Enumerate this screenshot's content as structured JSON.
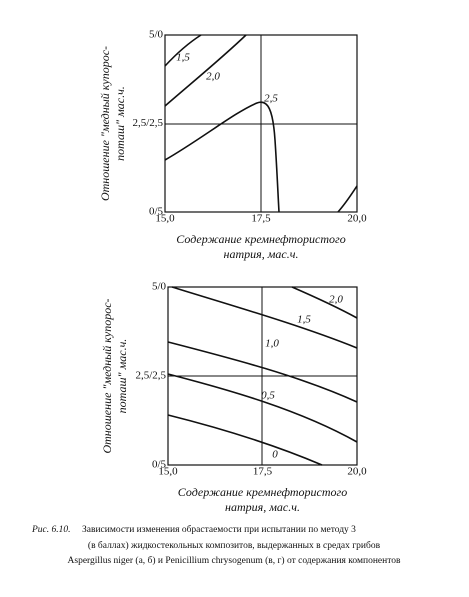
{
  "figures": [
    {
      "y_axis_label": [
        "Отношение \"медный купорос-",
        "поташ\" мас.ч."
      ],
      "x_axis_label": [
        "Содержание кремнефтористого",
        "натрия, мас.ч."
      ],
      "x_ticks": [
        "15,0",
        "17,5",
        "20,0"
      ],
      "y_ticks": [
        "5/0",
        "2,5/2,5",
        "0/5"
      ],
      "contour_labels": [
        "1,5",
        "2,0",
        "2,5"
      ]
    },
    {
      "y_axis_label": [
        "Отношение \"медный купорос-",
        "поташ\" мас.ч."
      ],
      "x_axis_label": [
        "Содержание кремнефтористого",
        "натрия, мас.ч."
      ],
      "x_ticks": [
        "15,0",
        "17,5",
        "20,0"
      ],
      "y_ticks": [
        "5/0",
        "2,5/2,5",
        "0/5"
      ],
      "contour_labels": [
        "2,0",
        "1,5",
        "1,0",
        "0,5",
        "0"
      ]
    }
  ],
  "caption": {
    "label": "Рис. 6.10.",
    "lines": [
      "Зависимости изменения обрастаемости при испытании по методу 3",
      "(в баллах) жидкостекольных композитов, выдержанных в средах грибов",
      "Aspergillus niger (а, б) и Penicillium chrysogenum (в, г) от содержания компонентов"
    ]
  }
}
